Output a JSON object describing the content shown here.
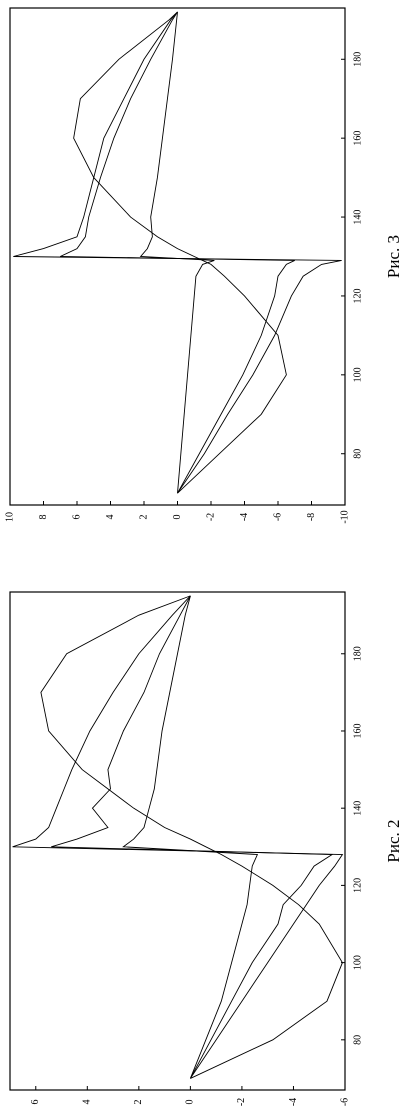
{
  "chart_data": [
    {
      "type": "line",
      "title": "Рис. 2",
      "x": [
        70,
        80,
        90,
        100,
        110,
        115,
        120,
        125,
        128,
        130,
        132,
        135,
        140,
        145,
        150,
        160,
        170,
        180,
        190,
        195
      ],
      "series": [
        {
          "color": "#000000",
          "values": [
            0,
            -3.2,
            -5.3,
            -5.9,
            -5,
            -4.2,
            -3.2,
            -2,
            -1.2,
            -0.6,
            0,
            1,
            2.2,
            3.2,
            4.2,
            5.5,
            5.8,
            4.8,
            2,
            0
          ]
        },
        {
          "color": "#000000",
          "values": [
            0,
            -1,
            -2,
            -3,
            -4,
            -4.5,
            -5,
            -5.6,
            -5.9,
            6.9,
            6,
            5.5,
            5.2,
            4.9,
            4.6,
            3.9,
            3,
            2,
            0.7,
            0
          ]
        },
        {
          "color": "#000000",
          "values": [
            0,
            -0.8,
            -1.6,
            -2.4,
            -3.4,
            -3.6,
            -4.3,
            -4.8,
            -5.5,
            5.4,
            4.4,
            3.2,
            3.8,
            3.1,
            3.2,
            2.6,
            1.8,
            1.2,
            0.4,
            0
          ]
        },
        {
          "color": "#000000",
          "values": [
            0,
            -0.6,
            -1.2,
            -1.6,
            -2,
            -2.2,
            -2.3,
            -2.4,
            -2.6,
            2.6,
            2.2,
            1.8,
            1.6,
            1.4,
            1.3,
            1.1,
            0.8,
            0.5,
            0.2,
            0
          ]
        }
      ],
      "xlim": [
        67,
        196
      ],
      "xticks": [
        80,
        100,
        120,
        140,
        160,
        180
      ],
      "ylim": [
        -6,
        7
      ],
      "yticks": [
        -6,
        -4,
        -2,
        0,
        2,
        4,
        6
      ]
    },
    {
      "type": "line",
      "title": "Рис. 3",
      "x": [
        70,
        80,
        90,
        100,
        110,
        120,
        125,
        128,
        129,
        130,
        132,
        135,
        140,
        150,
        160,
        170,
        180,
        190,
        192
      ],
      "series": [
        {
          "color": "#000000",
          "values": [
            0,
            -2.5,
            -5,
            -6.5,
            -6,
            -4,
            -2.8,
            -2,
            -1.5,
            -1,
            0,
            1.2,
            2.8,
            5,
            6.2,
            5.8,
            3.5,
            0.5,
            0
          ]
        },
        {
          "color": "#000000",
          "values": [
            0,
            -1.6,
            -3,
            -4.5,
            -5.8,
            -6.8,
            -7.5,
            -8.6,
            -9.8,
            9.8,
            8,
            6,
            5.6,
            5,
            4.4,
            3.2,
            2,
            0.4,
            0
          ]
        },
        {
          "color": "#000000",
          "values": [
            0,
            -1.3,
            -2.6,
            -3.9,
            -5,
            -5.8,
            -6,
            -6.5,
            -7,
            7,
            6,
            5.5,
            5.3,
            4.6,
            3.8,
            2.8,
            1.6,
            0.3,
            0
          ]
        },
        {
          "color": "#000000",
          "values": [
            0,
            -0.2,
            -0.4,
            -0.6,
            -0.8,
            -1,
            -1.1,
            -1.5,
            -2.2,
            2.2,
            1.8,
            1.5,
            1.6,
            1.2,
            0.9,
            0.6,
            0.3,
            0.05,
            0
          ]
        }
      ],
      "xlim": [
        67,
        193
      ],
      "xticks": [
        80,
        100,
        120,
        140,
        160,
        180
      ],
      "ylim": [
        -10,
        10
      ],
      "yticks": [
        -10,
        -8,
        -6,
        -4,
        -2,
        0,
        2,
        4,
        6,
        8,
        10
      ]
    }
  ]
}
